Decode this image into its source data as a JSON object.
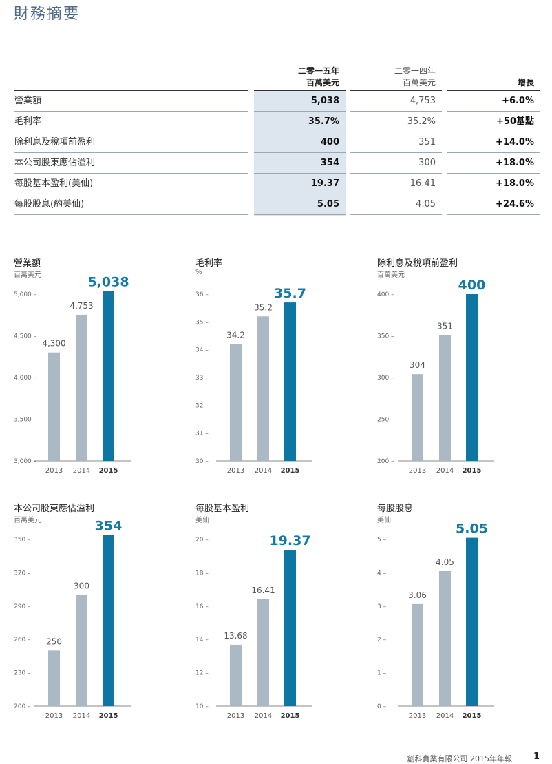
{
  "page_title": "財務摘要",
  "table": {
    "headers": {
      "y2015_line1": "二零一五年",
      "y2015_line2": "百萬美元",
      "y2014_line1": "二零一四年",
      "y2014_line2": "百萬美元",
      "growth": "增長"
    },
    "rows": [
      {
        "label": "營業額",
        "y2015": "5,038",
        "y2014": "4,753",
        "growth": "+6.0%"
      },
      {
        "label": "毛利率",
        "y2015": "35.7%",
        "y2014": "35.2%",
        "growth": "+50基點"
      },
      {
        "label": "除利息及稅項前盈利",
        "y2015": "400",
        "y2014": "351",
        "growth": "+14.0%"
      },
      {
        "label": "本公司股東應佔溢利",
        "y2015": "354",
        "y2014": "300",
        "growth": "+18.0%"
      },
      {
        "label": "每股基本盈利(美仙)",
        "y2015": "19.37",
        "y2014": "16.41",
        "growth": "+18.0%"
      },
      {
        "label": "每股股息(約美仙)",
        "y2015": "5.05",
        "y2014": "4.05",
        "growth": "+24.6%"
      }
    ]
  },
  "colors": {
    "bar_past": "#aab9c3",
    "bar_current": "#0d76a3",
    "highlight_col": "#dde5ef"
  },
  "chart_data": [
    {
      "type": "bar",
      "title": "營業額",
      "unit": "百萬美元",
      "categories": [
        "2013",
        "2014",
        "2015"
      ],
      "values": [
        4300,
        4753,
        5038
      ],
      "value_labels": [
        "4,300",
        "4,753",
        "5,038"
      ],
      "ylim": [
        3000,
        5000
      ],
      "yticks": [
        3000,
        3500,
        4000,
        4500,
        5000
      ],
      "ytick_labels": [
        "3,000",
        "3,500",
        "4,000",
        "4,500",
        "5,000"
      ],
      "grid": false
    },
    {
      "type": "bar",
      "title": "毛利率",
      "unit": "%",
      "categories": [
        "2013",
        "2014",
        "2015"
      ],
      "values": [
        34.2,
        35.2,
        35.7
      ],
      "value_labels": [
        "34.2",
        "35.2",
        "35.7"
      ],
      "ylim": [
        30,
        36
      ],
      "yticks": [
        30,
        31,
        32,
        33,
        34,
        35,
        36
      ],
      "ytick_labels": [
        "30",
        "31",
        "32",
        "33",
        "34",
        "35",
        "36"
      ],
      "grid": false
    },
    {
      "type": "bar",
      "title": "除利息及稅項前盈利",
      "unit": "百萬美元",
      "categories": [
        "2013",
        "2014",
        "2015"
      ],
      "values": [
        304,
        351,
        400
      ],
      "value_labels": [
        "304",
        "351",
        "400"
      ],
      "ylim": [
        200,
        400
      ],
      "yticks": [
        200,
        250,
        300,
        350,
        400
      ],
      "ytick_labels": [
        "200",
        "250",
        "300",
        "350",
        "400"
      ],
      "grid": false
    },
    {
      "type": "bar",
      "title": "本公司股東應佔溢利",
      "unit": "百萬美元",
      "categories": [
        "2013",
        "2014",
        "2015"
      ],
      "values": [
        250,
        300,
        354
      ],
      "value_labels": [
        "250",
        "300",
        "354"
      ],
      "ylim": [
        200,
        350
      ],
      "yticks": [
        200,
        230,
        260,
        290,
        320,
        350
      ],
      "ytick_labels": [
        "200",
        "230",
        "260",
        "290",
        "320",
        "350"
      ],
      "grid": false
    },
    {
      "type": "bar",
      "title": "每股基本盈利",
      "unit": "美仙",
      "categories": [
        "2013",
        "2014",
        "2015"
      ],
      "values": [
        13.68,
        16.41,
        19.37
      ],
      "value_labels": [
        "13.68",
        "16.41",
        "19.37"
      ],
      "ylim": [
        10,
        20
      ],
      "yticks": [
        10,
        12,
        14,
        16,
        18,
        20
      ],
      "ytick_labels": [
        "10",
        "12",
        "14",
        "16",
        "18",
        "20"
      ],
      "grid": false
    },
    {
      "type": "bar",
      "title": "每股股息",
      "unit": "美仙",
      "categories": [
        "2013",
        "2014",
        "2015"
      ],
      "values": [
        3.06,
        4.05,
        5.05
      ],
      "value_labels": [
        "3.06",
        "4.05",
        "5.05"
      ],
      "ylim": [
        0,
        5
      ],
      "yticks": [
        0,
        1,
        2,
        3,
        4,
        5
      ],
      "ytick_labels": [
        "0",
        "1",
        "2",
        "3",
        "4",
        "5"
      ],
      "grid": false
    }
  ],
  "footer": {
    "text": "創科實業有限公司 2015年年報",
    "page": "1"
  }
}
